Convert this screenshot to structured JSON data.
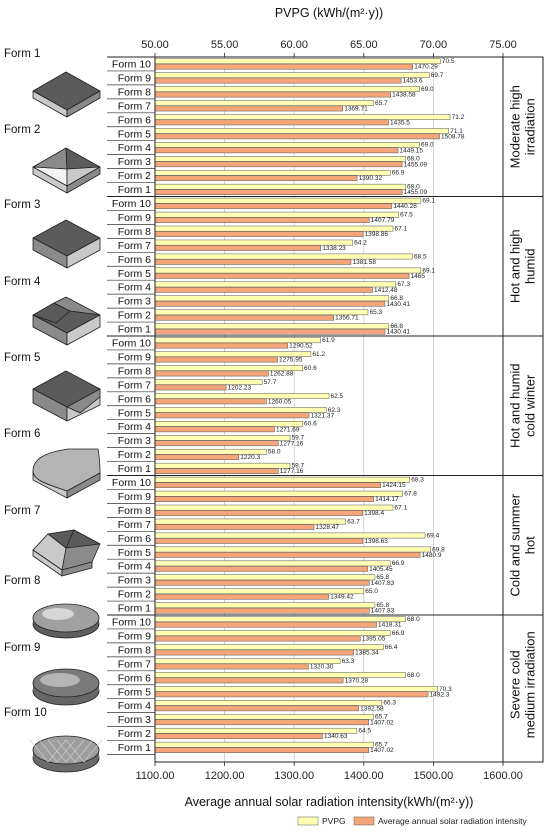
{
  "chart_data": {
    "type": "bar",
    "orientation": "horizontal",
    "top_axis_label": "PVPG (kWh/(m²·y))",
    "bottom_axis_label": "Average annual solar radiation intensity(kWh/(m²·y))",
    "pvpg_range": [
      50,
      75
    ],
    "pvpg_ticks": [
      "50.00",
      "55.00",
      "60.00",
      "65.00",
      "70.00",
      "75.00"
    ],
    "radiation_range": [
      1100,
      1600
    ],
    "radiation_ticks": [
      "1100.00",
      "1200.00",
      "1300.00",
      "1400.00",
      "1500.00",
      "1600.00"
    ],
    "legend": [
      "PVPG",
      "Average annual solar radiation intensity"
    ],
    "colors": {
      "pvpg": "#ffffb4",
      "radiation": "#f4a67a",
      "bar_stroke": "#555555"
    },
    "forms": [
      "Form 1",
      "Form 2",
      "Form 3",
      "Form 4",
      "Form 5",
      "Form 6",
      "Form 7",
      "Form 8",
      "Form 9",
      "Form 10"
    ],
    "groups": [
      {
        "name": [
          "Moderate high",
          "irradiation"
        ],
        "categories": [
          "Form 10",
          "Form 9",
          "Form 8",
          "Form 7",
          "Form 6",
          "Form 5",
          "Form 4",
          "Form 3",
          "Form 2",
          "Form 1"
        ],
        "pvpg": [
          "70.5",
          "69.7",
          "69.0",
          "65.7",
          "71.2",
          "71.1",
          "69.0",
          "68.0",
          "66.9",
          "68.0"
        ],
        "radiation": [
          "1470.29",
          "1453.6",
          "1438.58",
          "1369.71",
          "1435.5",
          "1508.78",
          "1449.15",
          "1455.09",
          "1390.32",
          "1455.09"
        ]
      },
      {
        "name": [
          "Hot and high",
          "humid"
        ],
        "categories": [
          "Form 10",
          "Form 9",
          "Form 8",
          "Form 7",
          "Form 6",
          "Form 5",
          "Form 4",
          "Form 3",
          "Form 2",
          "Form 1"
        ],
        "pvpg": [
          "69.1",
          "67.5",
          "67.1",
          "64.2",
          "68.5",
          "69.1",
          "67.3",
          "66.8",
          "65.3",
          "66.8"
        ],
        "radiation": [
          "1440.28",
          "1407.79",
          "1398.86",
          "1338.23",
          "1381.58",
          "1465",
          "1412.48",
          "1430.41",
          "1356.71",
          "1430.41"
        ]
      },
      {
        "name": [
          "Hot and humid",
          "cold winter"
        ],
        "categories": [
          "Form 10",
          "Form 9",
          "Form 8",
          "Form 7",
          "Form 6",
          "Form 5",
          "Form 4",
          "Form 3",
          "Form 2",
          "Form 1"
        ],
        "pvpg": [
          "61.9",
          "61.2",
          "60.6",
          "57.7",
          "62.5",
          "62.3",
          "60.6",
          "59.7",
          "58.0",
          "59.7"
        ],
        "radiation": [
          "1290.52",
          "1275.95",
          "1262.88",
          "1202.23",
          "1260.05",
          "1321.37",
          "1271.69",
          "1277.16",
          "1220.3",
          "1277.16"
        ]
      },
      {
        "name": [
          "Cold and summer",
          "hot"
        ],
        "categories": [
          "Form 10",
          "Form 9",
          "Form 8",
          "Form 7",
          "Form 6",
          "Form 5",
          "Form 4",
          "Form 3",
          "Form 2",
          "Form 1"
        ],
        "pvpg": [
          "68.3",
          "67.8",
          "67.1",
          "63.7",
          "69.4",
          "69.8",
          "66.9",
          "65.8",
          "65.0",
          "65.8"
        ],
        "radiation": [
          "1424.15",
          "1414.17",
          "1398.4",
          "1328.47",
          "1398.63",
          "1480.9",
          "1405.45",
          "1407.83",
          "1349.42",
          "1407.83"
        ]
      },
      {
        "name": [
          "Severe cold",
          "medium irradiation"
        ],
        "categories": [
          "Form 10",
          "Form 9",
          "Form 8",
          "Form 7",
          "Form 6",
          "Form 5",
          "Form 4",
          "Form 3",
          "Form 2",
          "Form 1"
        ],
        "pvpg": [
          "68.0",
          "66.9",
          "66.4",
          "63.3",
          "68.0",
          "70.3",
          "66.3",
          "65.7",
          "64.5",
          "65.7"
        ],
        "radiation": [
          "1418.31",
          "1395.05",
          "1385.34",
          "1320.30",
          "1370.28",
          "1492.3",
          "1392.58",
          "1407.02",
          "1340.63",
          "1407.02"
        ]
      }
    ]
  }
}
